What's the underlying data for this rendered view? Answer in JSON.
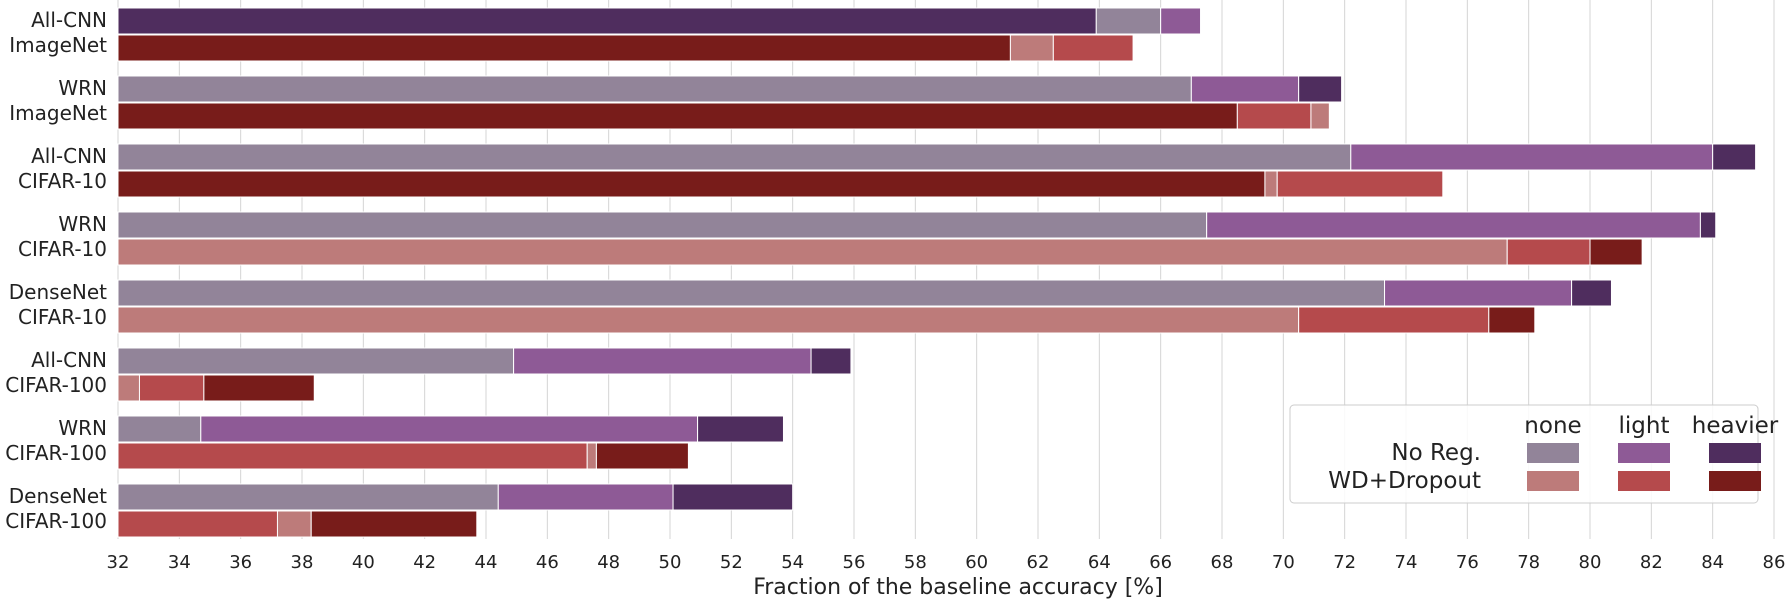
{
  "chart_data": {
    "type": "bar",
    "orientation": "horizontal-stacked",
    "xlabel": "Fraction of the baseline accuracy [%]",
    "xlim": [
      32,
      86
    ],
    "xticks": [
      "32",
      "34",
      "36",
      "38",
      "40",
      "42",
      "44",
      "46",
      "48",
      "50",
      "52",
      "54",
      "56",
      "58",
      "60",
      "62",
      "64",
      "66",
      "68",
      "70",
      "72",
      "74",
      "76",
      "78",
      "80",
      "82",
      "84",
      "86"
    ],
    "grid": "vertical",
    "legend": {
      "placement": "lower-right",
      "columns": [
        "none",
        "light",
        "heavier"
      ],
      "rows": [
        "No Reg.",
        "WD+Dropout"
      ]
    },
    "colors": {
      "noreg": {
        "none": "#928499",
        "light": "#8e5a96",
        "heavier": "#4f2d5e"
      },
      "wd": {
        "none": "#bd7b7a",
        "light": "#b54a4c",
        "heavier": "#781c1a"
      }
    },
    "groups": [
      {
        "line1": "All-CNN",
        "line2": "ImageNet",
        "noreg": [
          [
            "heavier",
            63.9
          ],
          [
            "none",
            66.0
          ],
          [
            "light",
            67.3
          ]
        ],
        "wd": [
          [
            "heavier",
            61.1
          ],
          [
            "none",
            62.5
          ],
          [
            "light",
            65.1
          ]
        ]
      },
      {
        "line1": "WRN",
        "line2": "ImageNet",
        "noreg": [
          [
            "none",
            67.0
          ],
          [
            "light",
            70.5
          ],
          [
            "heavier",
            71.9
          ]
        ],
        "wd": [
          [
            "heavier",
            68.5
          ],
          [
            "light",
            70.9
          ],
          [
            "none",
            71.5
          ]
        ]
      },
      {
        "line1": "All-CNN",
        "line2": "CIFAR-10",
        "noreg": [
          [
            "none",
            72.2
          ],
          [
            "light",
            84.0
          ],
          [
            "heavier",
            85.4
          ]
        ],
        "wd": [
          [
            "heavier",
            69.4
          ],
          [
            "none",
            69.8
          ],
          [
            "light",
            75.2
          ]
        ]
      },
      {
        "line1": "WRN",
        "line2": "CIFAR-10",
        "noreg": [
          [
            "none",
            67.5
          ],
          [
            "light",
            83.6
          ],
          [
            "heavier",
            84.1
          ]
        ],
        "wd": [
          [
            "none",
            77.3
          ],
          [
            "light",
            80.0
          ],
          [
            "heavier",
            81.7
          ]
        ]
      },
      {
        "line1": "DenseNet",
        "line2": "CIFAR-10",
        "noreg": [
          [
            "none",
            73.3
          ],
          [
            "light",
            79.4
          ],
          [
            "heavier",
            80.7
          ]
        ],
        "wd": [
          [
            "none",
            70.5
          ],
          [
            "light",
            76.7
          ],
          [
            "heavier",
            78.2
          ]
        ]
      },
      {
        "line1": "All-CNN",
        "line2": "CIFAR-100",
        "noreg": [
          [
            "none",
            44.9
          ],
          [
            "light",
            54.6
          ],
          [
            "heavier",
            55.9
          ]
        ],
        "wd": [
          [
            "none",
            32.7
          ],
          [
            "light",
            34.8
          ],
          [
            "heavier",
            38.4
          ]
        ]
      },
      {
        "line1": "WRN",
        "line2": "CIFAR-100",
        "noreg": [
          [
            "none",
            34.7
          ],
          [
            "light",
            50.9
          ],
          [
            "heavier",
            53.7
          ]
        ],
        "wd": [
          [
            "light",
            47.3
          ],
          [
            "none",
            47.6
          ],
          [
            "heavier",
            50.6
          ]
        ]
      },
      {
        "line1": "DenseNet",
        "line2": "CIFAR-100",
        "noreg": [
          [
            "none",
            44.4
          ],
          [
            "light",
            50.1
          ],
          [
            "heavier",
            54.0
          ]
        ],
        "wd": [
          [
            "light",
            37.2
          ],
          [
            "none",
            38.3
          ],
          [
            "heavier",
            43.7
          ]
        ]
      }
    ]
  }
}
